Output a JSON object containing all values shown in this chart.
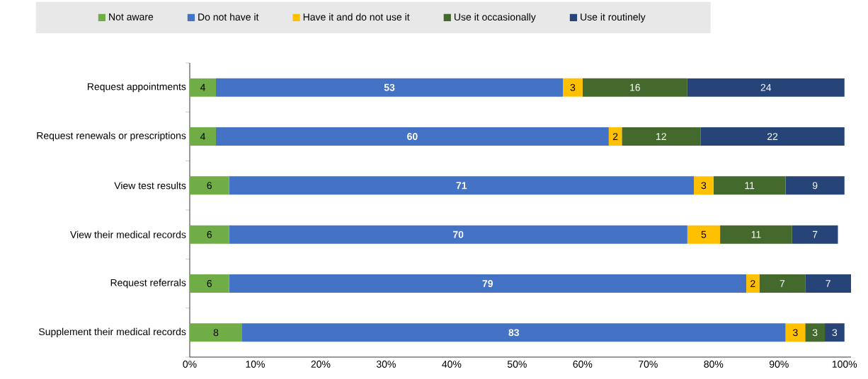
{
  "chart_data": {
    "type": "bar",
    "orientation": "horizontal",
    "stacked": true,
    "data_labels": true,
    "legend": "top",
    "grid": false,
    "categories": [
      "Request appointments",
      "Request renewals or prescriptions",
      "View test results",
      "View their medical records",
      "Request referrals",
      "Supplement their medical records"
    ],
    "series": [
      {
        "name": "Not aware",
        "color": "#70ad47",
        "values": [
          4,
          4,
          6,
          6,
          6,
          8
        ]
      },
      {
        "name": "Do not have it",
        "color": "#4472c4",
        "values": [
          53,
          60,
          71,
          70,
          79,
          83
        ]
      },
      {
        "name": "Have it and do not use it",
        "color": "#ffc000",
        "values": [
          3,
          2,
          3,
          5,
          2,
          3
        ]
      },
      {
        "name": "Use it occasionally",
        "color": "#436a2c",
        "values": [
          16,
          12,
          11,
          11,
          7,
          3
        ]
      },
      {
        "name": "Use it routinely",
        "color": "#264478",
        "values": [
          24,
          22,
          9,
          7,
          7,
          3
        ]
      }
    ],
    "xlim": [
      0,
      101
    ],
    "xticks": [
      {
        "value": 0,
        "label": "0%"
      },
      {
        "value": 10,
        "label": "10%"
      },
      {
        "value": 20,
        "label": "20%"
      },
      {
        "value": 30,
        "label": "30%"
      },
      {
        "value": 40,
        "label": "40%"
      },
      {
        "value": 50,
        "label": "50%"
      },
      {
        "value": 60,
        "label": "60%"
      },
      {
        "value": 70,
        "label": "70%"
      },
      {
        "value": 80,
        "label": "80%"
      },
      {
        "value": 90,
        "label": "90%"
      },
      {
        "value": 100,
        "label": "100%"
      }
    ]
  }
}
